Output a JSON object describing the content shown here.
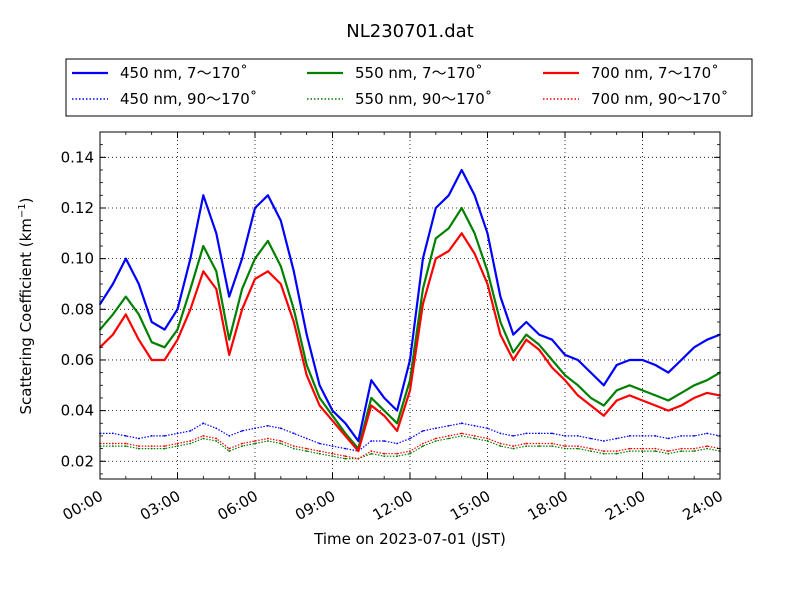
{
  "chart_data": {
    "type": "line",
    "title": "NL230701.dat",
    "xlabel": "Time on 2023-07-01 (JST)",
    "ylabel_main": "Scattering Coefficient (km",
    "ylabel_sup": "−1",
    "ylabel_end": ")",
    "xlim": [
      0,
      24
    ],
    "ylim": [
      0.013,
      0.15
    ],
    "x_ticks": [
      0,
      3,
      6,
      9,
      12,
      15,
      18,
      21,
      24
    ],
    "x_tick_labels": [
      "00:00",
      "03:00",
      "06:00",
      "09:00",
      "12:00",
      "15:00",
      "18:00",
      "21:00",
      "24:00"
    ],
    "y_ticks": [
      0.02,
      0.04,
      0.06,
      0.08,
      0.1,
      0.12,
      0.14
    ],
    "y_tick_labels": [
      "0.02",
      "0.04",
      "0.06",
      "0.08",
      "0.10",
      "0.12",
      "0.14"
    ],
    "grid": true,
    "legend_placement": "top, above plot, 3 columns",
    "legend": [
      {
        "label": "450 nm, 7～170˚",
        "color": "#0000ff",
        "style": "solid"
      },
      {
        "label": "550 nm, 7～170˚",
        "color": "#008000",
        "style": "solid"
      },
      {
        "label": "700 nm, 7～170˚",
        "color": "#ff0000",
        "style": "solid"
      },
      {
        "label": "450 nm, 90～170˚",
        "color": "#0000ff",
        "style": "dotted"
      },
      {
        "label": "550 nm, 90～170˚",
        "color": "#008000",
        "style": "dotted"
      },
      {
        "label": "700 nm, 90～170˚",
        "color": "#ff0000",
        "style": "dotted"
      }
    ],
    "x": [
      0,
      0.5,
      1,
      1.5,
      2,
      2.5,
      3,
      3.5,
      4,
      4.5,
      5,
      5.5,
      6,
      6.5,
      7,
      7.5,
      8,
      8.5,
      9,
      9.5,
      10,
      10.5,
      11,
      11.5,
      12,
      12.5,
      13,
      13.5,
      14,
      14.5,
      15,
      15.5,
      16,
      16.5,
      17,
      17.5,
      18,
      18.5,
      19,
      19.5,
      20,
      20.5,
      21,
      21.5,
      22,
      22.5,
      23,
      23.5,
      24
    ],
    "series": [
      {
        "name": "450 nm, 7～170˚",
        "color": "#0000ff",
        "style": "solid",
        "values": [
          0.082,
          0.09,
          0.1,
          0.09,
          0.075,
          0.072,
          0.08,
          0.1,
          0.125,
          0.11,
          0.085,
          0.1,
          0.12,
          0.125,
          0.115,
          0.095,
          0.07,
          0.05,
          0.04,
          0.035,
          0.028,
          0.052,
          0.045,
          0.04,
          0.06,
          0.1,
          0.12,
          0.125,
          0.135,
          0.125,
          0.11,
          0.085,
          0.07,
          0.075,
          0.07,
          0.068,
          0.062,
          0.06,
          0.055,
          0.05,
          0.058,
          0.06,
          0.06,
          0.058,
          0.055,
          0.06,
          0.065,
          0.068,
          0.07
        ]
      },
      {
        "name": "550 nm, 7～170˚",
        "color": "#008000",
        "style": "solid",
        "values": [
          0.072,
          0.078,
          0.085,
          0.078,
          0.067,
          0.065,
          0.072,
          0.088,
          0.105,
          0.095,
          0.068,
          0.088,
          0.1,
          0.107,
          0.097,
          0.08,
          0.058,
          0.045,
          0.038,
          0.031,
          0.025,
          0.045,
          0.04,
          0.035,
          0.052,
          0.088,
          0.108,
          0.112,
          0.12,
          0.11,
          0.095,
          0.075,
          0.063,
          0.07,
          0.066,
          0.06,
          0.054,
          0.05,
          0.045,
          0.042,
          0.048,
          0.05,
          0.048,
          0.046,
          0.044,
          0.047,
          0.05,
          0.052,
          0.055
        ]
      },
      {
        "name": "700 nm, 7～170˚",
        "color": "#ff0000",
        "style": "solid",
        "values": [
          0.065,
          0.07,
          0.078,
          0.068,
          0.06,
          0.06,
          0.068,
          0.08,
          0.095,
          0.088,
          0.062,
          0.08,
          0.092,
          0.095,
          0.09,
          0.075,
          0.054,
          0.042,
          0.036,
          0.03,
          0.024,
          0.042,
          0.038,
          0.032,
          0.048,
          0.082,
          0.1,
          0.103,
          0.11,
          0.102,
          0.09,
          0.07,
          0.06,
          0.068,
          0.064,
          0.057,
          0.052,
          0.046,
          0.042,
          0.038,
          0.044,
          0.046,
          0.044,
          0.042,
          0.04,
          0.042,
          0.045,
          0.047,
          0.046
        ]
      },
      {
        "name": "450 nm, 90～170˚",
        "color": "#0000ff",
        "style": "dotted",
        "values": [
          0.031,
          0.031,
          0.03,
          0.029,
          0.03,
          0.03,
          0.031,
          0.032,
          0.035,
          0.033,
          0.03,
          0.032,
          0.033,
          0.034,
          0.033,
          0.031,
          0.029,
          0.027,
          0.026,
          0.025,
          0.024,
          0.028,
          0.028,
          0.027,
          0.029,
          0.032,
          0.033,
          0.034,
          0.035,
          0.034,
          0.033,
          0.031,
          0.03,
          0.031,
          0.031,
          0.031,
          0.03,
          0.03,
          0.029,
          0.028,
          0.029,
          0.03,
          0.03,
          0.03,
          0.029,
          0.03,
          0.03,
          0.031,
          0.03
        ]
      },
      {
        "name": "550 nm, 90～170˚",
        "color": "#008000",
        "style": "dotted",
        "values": [
          0.026,
          0.026,
          0.026,
          0.025,
          0.025,
          0.025,
          0.026,
          0.027,
          0.029,
          0.028,
          0.024,
          0.026,
          0.027,
          0.028,
          0.027,
          0.025,
          0.024,
          0.023,
          0.022,
          0.021,
          0.021,
          0.023,
          0.022,
          0.022,
          0.023,
          0.026,
          0.028,
          0.029,
          0.03,
          0.029,
          0.028,
          0.026,
          0.025,
          0.026,
          0.026,
          0.026,
          0.025,
          0.025,
          0.024,
          0.023,
          0.023,
          0.024,
          0.024,
          0.024,
          0.023,
          0.024,
          0.024,
          0.025,
          0.024
        ]
      },
      {
        "name": "700 nm, 90～170˚",
        "color": "#ff0000",
        "style": "dotted",
        "values": [
          0.027,
          0.027,
          0.027,
          0.026,
          0.026,
          0.026,
          0.027,
          0.028,
          0.03,
          0.029,
          0.025,
          0.027,
          0.028,
          0.029,
          0.028,
          0.026,
          0.025,
          0.024,
          0.023,
          0.022,
          0.021,
          0.024,
          0.023,
          0.023,
          0.024,
          0.027,
          0.029,
          0.03,
          0.031,
          0.03,
          0.029,
          0.027,
          0.026,
          0.027,
          0.027,
          0.027,
          0.026,
          0.026,
          0.025,
          0.024,
          0.024,
          0.025,
          0.025,
          0.025,
          0.024,
          0.025,
          0.025,
          0.026,
          0.025
        ]
      }
    ]
  }
}
